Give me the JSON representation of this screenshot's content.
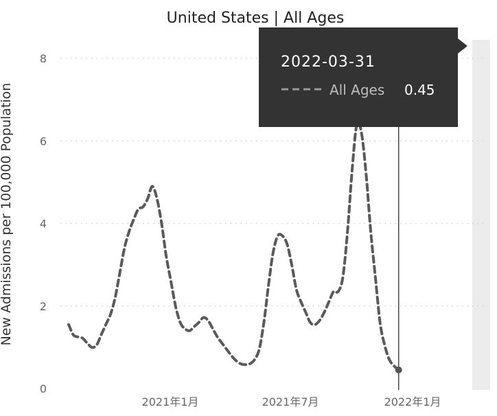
{
  "chart_data": {
    "type": "line",
    "title": "United States | All Ages",
    "xlabel": "",
    "ylabel": "New Admissions per 100,000 Population",
    "ylim": [
      0,
      8
    ],
    "yticks": [
      "0",
      "2",
      "4",
      "6",
      "8"
    ],
    "xticks": [
      {
        "date": "2021-01-01",
        "label": "2021年1月"
      },
      {
        "date": "2021-07-01",
        "label": "2021年7月"
      },
      {
        "date": "2022-01-01",
        "label": "2022年1月"
      }
    ],
    "grid": true,
    "series": [
      {
        "name": "All Ages",
        "color": "#5a5a5a",
        "points": [
          [
            "2020-08-01",
            1.55
          ],
          [
            "2020-08-08",
            1.3
          ],
          [
            "2020-08-15",
            1.25
          ],
          [
            "2020-08-22",
            1.22
          ],
          [
            "2020-08-29",
            1.1
          ],
          [
            "2020-09-05",
            1.0
          ],
          [
            "2020-09-12",
            1.05
          ],
          [
            "2020-09-19",
            1.3
          ],
          [
            "2020-09-26",
            1.55
          ],
          [
            "2020-10-03",
            1.8
          ],
          [
            "2020-10-10",
            2.2
          ],
          [
            "2020-10-17",
            2.8
          ],
          [
            "2020-10-24",
            3.4
          ],
          [
            "2020-10-31",
            3.8
          ],
          [
            "2020-11-07",
            4.1
          ],
          [
            "2020-11-14",
            4.35
          ],
          [
            "2020-11-21",
            4.4
          ],
          [
            "2020-11-28",
            4.6
          ],
          [
            "2020-12-05",
            4.9
          ],
          [
            "2020-12-12",
            4.6
          ],
          [
            "2020-12-19",
            4.0
          ],
          [
            "2020-12-26",
            3.2
          ],
          [
            "2021-01-02",
            2.6
          ],
          [
            "2021-01-09",
            2.0
          ],
          [
            "2021-01-16",
            1.6
          ],
          [
            "2021-01-23",
            1.45
          ],
          [
            "2021-01-30",
            1.4
          ],
          [
            "2021-02-06",
            1.5
          ],
          [
            "2021-02-13",
            1.6
          ],
          [
            "2021-02-20",
            1.72
          ],
          [
            "2021-02-27",
            1.65
          ],
          [
            "2021-03-06",
            1.45
          ],
          [
            "2021-03-13",
            1.25
          ],
          [
            "2021-03-20",
            1.1
          ],
          [
            "2021-03-27",
            0.95
          ],
          [
            "2021-04-03",
            0.8
          ],
          [
            "2021-04-10",
            0.68
          ],
          [
            "2021-04-17",
            0.6
          ],
          [
            "2021-04-24",
            0.58
          ],
          [
            "2021-05-01",
            0.6
          ],
          [
            "2021-05-08",
            0.7
          ],
          [
            "2021-05-15",
            0.95
          ],
          [
            "2021-05-22",
            1.6
          ],
          [
            "2021-05-29",
            2.5
          ],
          [
            "2021-06-05",
            3.3
          ],
          [
            "2021-06-12",
            3.7
          ],
          [
            "2021-06-19",
            3.7
          ],
          [
            "2021-06-26",
            3.5
          ],
          [
            "2021-07-03",
            3.0
          ],
          [
            "2021-07-10",
            2.4
          ],
          [
            "2021-07-17",
            2.1
          ],
          [
            "2021-07-24",
            1.85
          ],
          [
            "2021-07-31",
            1.6
          ],
          [
            "2021-08-07",
            1.55
          ],
          [
            "2021-08-14",
            1.65
          ],
          [
            "2021-08-21",
            1.85
          ],
          [
            "2021-08-28",
            2.1
          ],
          [
            "2021-09-04",
            2.35
          ],
          [
            "2021-09-11",
            2.35
          ],
          [
            "2021-09-18",
            2.7
          ],
          [
            "2021-09-25",
            3.8
          ],
          [
            "2021-10-02",
            5.3
          ],
          [
            "2021-10-09",
            6.4
          ],
          [
            "2021-10-16",
            6.2
          ],
          [
            "2021-10-23",
            5.2
          ],
          [
            "2021-10-30",
            3.8
          ],
          [
            "2021-11-06",
            2.7
          ],
          [
            "2021-11-13",
            1.6
          ],
          [
            "2021-11-20",
            1.05
          ],
          [
            "2021-11-27",
            0.7
          ],
          [
            "2021-12-04",
            0.55
          ],
          [
            "2021-12-11",
            0.45
          ]
        ]
      }
    ],
    "tooltip": {
      "date": "2022-03-31",
      "series": "All Ages",
      "value": "0.45"
    }
  }
}
